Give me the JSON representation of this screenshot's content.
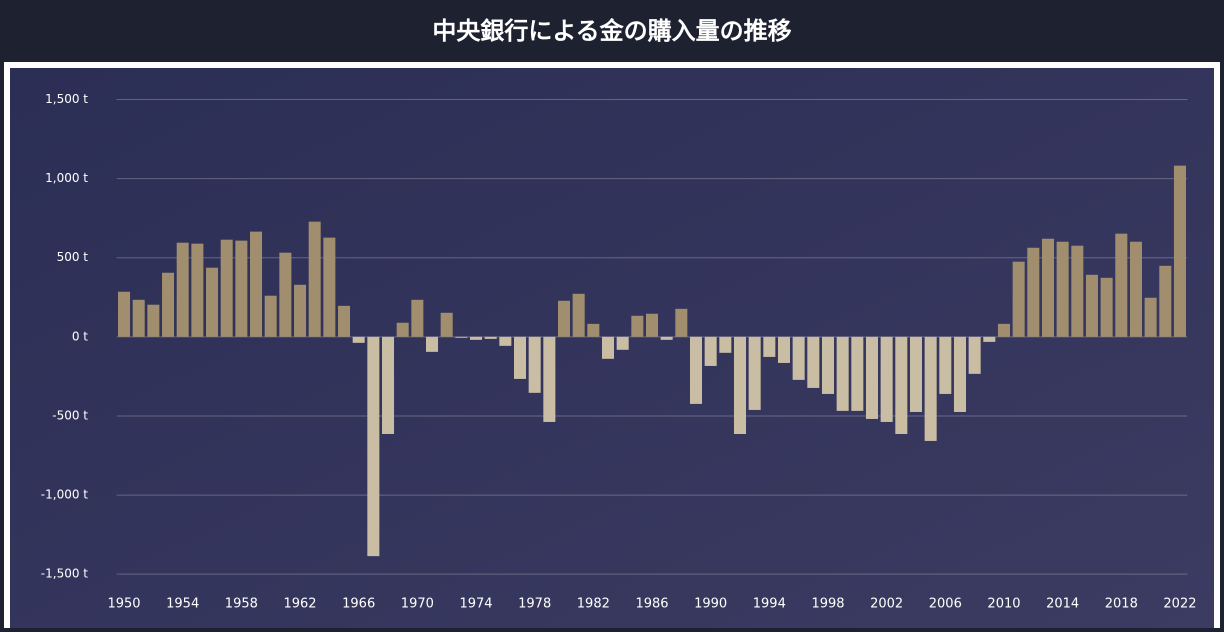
{
  "chart_data": {
    "type": "bar",
    "title": "中央銀行による金の購入量の推移",
    "categories": [
      "1950",
      null,
      null,
      null,
      "1954",
      null,
      null,
      null,
      "1958",
      null,
      null,
      null,
      "1962",
      null,
      null,
      null,
      "1966",
      null,
      null,
      null,
      "1970",
      null,
      null,
      null,
      "1974",
      null,
      null,
      null,
      "1978",
      null,
      null,
      null,
      "1982",
      null,
      null,
      null,
      "1986",
      null,
      null,
      null,
      "1990",
      null,
      null,
      null,
      "1994",
      null,
      null,
      null,
      "1998",
      null,
      null,
      null,
      "2002",
      null,
      null,
      null,
      "2006",
      null,
      null,
      null,
      "2010",
      null,
      null,
      null,
      "2014",
      null,
      null,
      null,
      "2018",
      null,
      null,
      null,
      "2022"
    ],
    "values": [
      285,
      234,
      203,
      405,
      595,
      589,
      437,
      614,
      608,
      665,
      260,
      532,
      329,
      728,
      627,
      196,
      -38,
      -1386,
      -614,
      89,
      234,
      -95,
      152,
      -6,
      -19,
      -13,
      -57,
      -266,
      -354,
      -538,
      228,
      272,
      82,
      -139,
      -82,
      133,
      146,
      -19,
      177,
      -424,
      -184,
      -101,
      -614,
      -462,
      -127,
      -165,
      -272,
      -323,
      -361,
      -468,
      -468,
      -519,
      -538,
      -614,
      -475,
      -658,
      -361,
      -475,
      -234,
      -32,
      82,
      475,
      563,
      620,
      601,
      576,
      392,
      373,
      652,
      601,
      247,
      449,
      1082
    ],
    "color": "#a08e6f",
    "negative_color": "#c9bda3",
    "ylim": [
      -1600,
      1560
    ],
    "yticks": [
      {
        "value": -1500,
        "label": "-1,500 t"
      },
      {
        "value": -1000,
        "label": "-1,000 t"
      },
      {
        "value": -500,
        "label": "-500 t"
      },
      {
        "value": 0,
        "label": "0 t"
      },
      {
        "value": 500,
        "label": "500 t"
      },
      {
        "value": 1000,
        "label": "1,000 t"
      },
      {
        "value": 1500,
        "label": "1,500 t"
      }
    ],
    "grid": true
  }
}
